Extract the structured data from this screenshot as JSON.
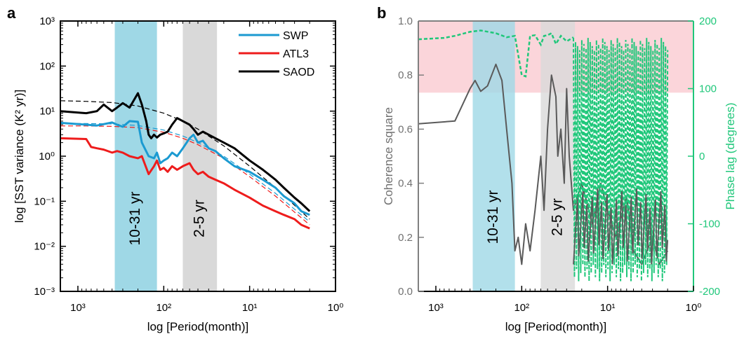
{
  "chart_data": [
    {
      "panel_label": "a",
      "type": "line",
      "xlabel": "log [Period(month)]",
      "ylabel": "log [SST variance (K² yr)]",
      "x_scale": "log, reversed",
      "y_scale": "log",
      "xlim": [
        1600,
        1
      ],
      "ylim": [
        0.001,
        1000
      ],
      "x_tick_labels": [
        "10³",
        "10²",
        "10¹",
        "10⁰"
      ],
      "y_tick_labels": [
        "10³",
        "10²",
        "10¹",
        "10⁰",
        "10⁻¹",
        "10⁻²",
        "10⁻³"
      ],
      "legend_position": "top-right",
      "bands": [
        {
          "label": "10-31 yr",
          "from": 372,
          "to": 120,
          "color": "#9fd8e6"
        },
        {
          "label": "2-5 yr",
          "from": 60,
          "to": 24,
          "color": "#d9d9d9"
        }
      ],
      "series": [
        {
          "name": "SWP",
          "color": "#1b9ad1",
          "x": [
            1600,
            800,
            600,
            400,
            350,
            300,
            250,
            200,
            180,
            150,
            130,
            120,
            110,
            100,
            90,
            80,
            70,
            60,
            50,
            45,
            40,
            35,
            30,
            25,
            20,
            15,
            10,
            7,
            5,
            4,
            3,
            2.5,
            2
          ],
          "values": [
            5.5,
            5.0,
            4.8,
            5.6,
            5.0,
            4.5,
            6.0,
            5.8,
            2.0,
            1.0,
            0.9,
            1.2,
            0.7,
            0.8,
            0.9,
            1.2,
            1.0,
            1.5,
            2.5,
            3.0,
            2.0,
            2.2,
            1.5,
            1.3,
            0.9,
            0.6,
            0.45,
            0.3,
            0.2,
            0.13,
            0.09,
            0.06,
            0.05
          ]
        },
        {
          "name": "ATL3",
          "color": "#ee1c1c",
          "x": [
            1600,
            800,
            700,
            600,
            500,
            400,
            350,
            300,
            250,
            200,
            180,
            150,
            130,
            120,
            110,
            100,
            90,
            80,
            70,
            60,
            50,
            45,
            40,
            35,
            30,
            25,
            20,
            15,
            10,
            7,
            5,
            4,
            3,
            2.5,
            2
          ],
          "values": [
            2.5,
            2.4,
            1.6,
            1.5,
            1.4,
            1.2,
            1.3,
            1.2,
            1.0,
            0.9,
            1.0,
            0.4,
            0.6,
            0.8,
            0.5,
            0.55,
            0.45,
            0.6,
            0.5,
            0.6,
            0.7,
            0.5,
            0.4,
            0.45,
            0.35,
            0.3,
            0.25,
            0.18,
            0.12,
            0.08,
            0.06,
            0.05,
            0.04,
            0.03,
            0.025
          ]
        },
        {
          "name": "SAOD",
          "color": "#000000",
          "x": [
            1600,
            800,
            600,
            500,
            400,
            350,
            300,
            250,
            200,
            180,
            160,
            150,
            140,
            130,
            120,
            110,
            100,
            90,
            80,
            70,
            60,
            50,
            45,
            40,
            35,
            30,
            25,
            20,
            15,
            10,
            7,
            5,
            4,
            3,
            2.5,
            2
          ],
          "values": [
            10,
            9,
            10,
            14,
            10,
            12,
            15,
            12,
            25,
            14,
            6,
            3,
            2.5,
            3,
            2.6,
            3,
            3.2,
            3.5,
            5,
            7,
            6,
            5,
            4,
            3,
            3.5,
            3,
            2.5,
            2,
            1.5,
            0.8,
            0.5,
            0.3,
            0.2,
            0.12,
            0.09,
            0.06
          ]
        }
      ],
      "reference_curves": [
        {
          "color": "#000000",
          "x": [
            1600,
            800,
            400,
            200,
            100,
            60,
            40,
            20,
            10,
            5,
            2
          ],
          "values": [
            17,
            16.5,
            15.5,
            13,
            9,
            6,
            4,
            1.7,
            0.6,
            0.2,
            0.04
          ]
        },
        {
          "color": "#1b9ad1",
          "x": [
            1600,
            800,
            400,
            200,
            100,
            60,
            40,
            20,
            10,
            5,
            2
          ],
          "values": [
            5.3,
            5.3,
            5.2,
            4.8,
            3.8,
            2.8,
            2.0,
            1.0,
            0.4,
            0.15,
            0.035
          ]
        },
        {
          "color": "#ee1c1c",
          "x": [
            1600,
            800,
            400,
            200,
            100,
            60,
            40,
            20,
            10,
            5,
            2
          ],
          "values": [
            4.7,
            4.7,
            4.6,
            4.3,
            3.4,
            2.5,
            1.8,
            0.9,
            0.35,
            0.13,
            0.03
          ]
        }
      ]
    },
    {
      "panel_label": "b",
      "type": "line",
      "xlabel": "log [Period(month)]",
      "ylabel": "Coherence square",
      "y2label": "Phase lag (degrees)",
      "x_scale": "log, reversed",
      "xlim": [
        1600,
        1
      ],
      "ylim": [
        0,
        1
      ],
      "y2lim": [
        -200,
        200
      ],
      "x_tick_labels": [
        "10³",
        "10²",
        "10¹",
        "10⁰"
      ],
      "y_tick_labels": [
        "0.0",
        "0.2",
        "0.4",
        "0.6",
        "0.8",
        "1.0"
      ],
      "y2_tick_labels": [
        "-200",
        "-100",
        "0",
        "100",
        "200"
      ],
      "significance_threshold": 0.735,
      "significance_color": "#fbd5da",
      "bands": [
        {
          "label": "10-31 yr",
          "from": 372,
          "to": 120,
          "color": "#9fd8e6"
        },
        {
          "label": "2-5 yr",
          "from": 60,
          "to": 24,
          "color": "#d9d9d9"
        }
      ],
      "coherence": {
        "color": "#5a5a5a",
        "x": [
          1600,
          600,
          400,
          350,
          300,
          250,
          200,
          170,
          150,
          130,
          120,
          110,
          100,
          90,
          80,
          70,
          60,
          55,
          50,
          45,
          40,
          38,
          35,
          32,
          30,
          28,
          25,
          20,
          15,
          12,
          10,
          8,
          6,
          5,
          4,
          3,
          2.5,
          2
        ],
        "values": [
          0.62,
          0.63,
          0.75,
          0.78,
          0.74,
          0.76,
          0.84,
          0.78,
          0.6,
          0.4,
          0.15,
          0.2,
          0.1,
          0.25,
          0.15,
          0.3,
          0.5,
          0.3,
          0.6,
          0.8,
          0.72,
          0.5,
          0.6,
          0.4,
          0.75,
          0.5,
          0.3,
          0.4,
          0.25,
          0.4,
          0.3,
          0.2,
          0.35,
          0.15,
          0.1,
          0.2,
          0.1,
          0.15
        ]
      },
      "phase": {
        "color": "#1fc77a",
        "x": [
          1600,
          800,
          600,
          400,
          300,
          200,
          150,
          120,
          100,
          90,
          80,
          70,
          60,
          55,
          50,
          45,
          40,
          35,
          30,
          25
        ],
        "values": [
          173,
          175,
          178,
          184,
          186,
          182,
          176,
          178,
          120,
          118,
          178,
          179,
          165,
          178,
          179,
          182,
          166,
          178,
          170,
          176
        ]
      }
    }
  ]
}
